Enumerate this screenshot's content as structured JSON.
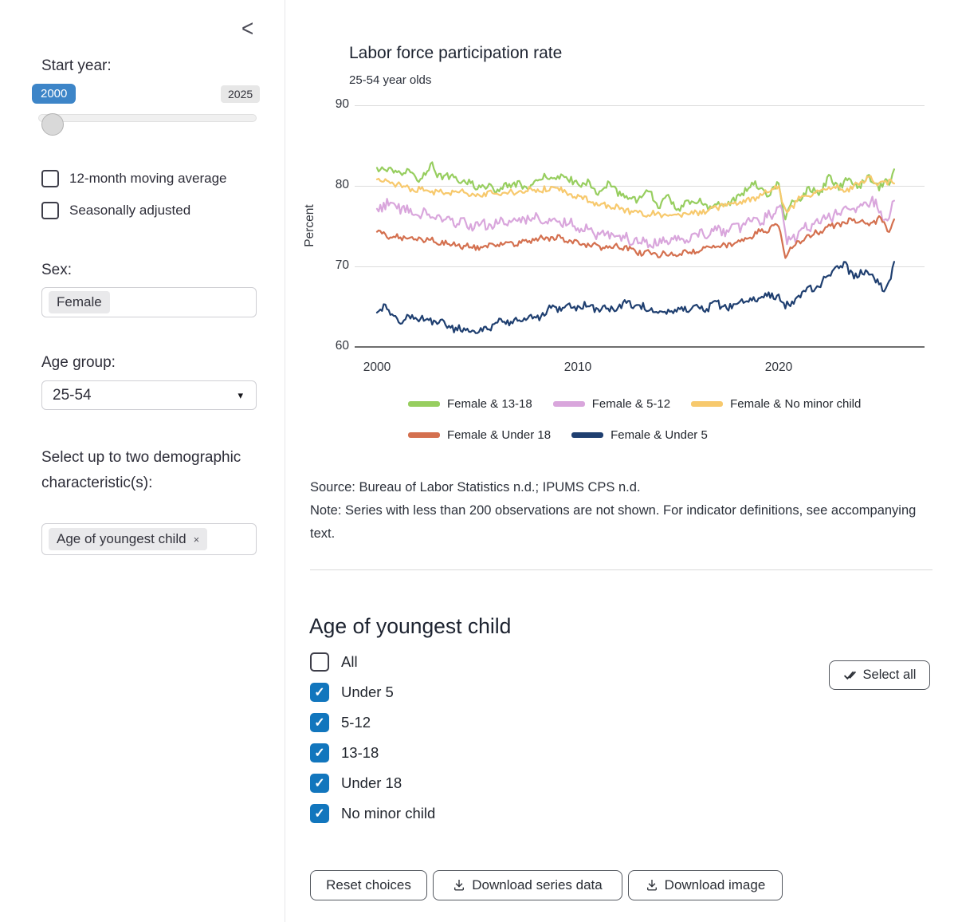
{
  "icons": {
    "collapse": "<",
    "caret": "▾",
    "check": "✓",
    "tag_remove": "×"
  },
  "sidebar": {
    "start_year": {
      "label": "Start year:",
      "min_value": "2000",
      "max_value": "2025"
    },
    "checkboxes": [
      {
        "label": "12-month moving average",
        "checked": false
      },
      {
        "label": "Seasonally adjusted",
        "checked": false
      }
    ],
    "sex": {
      "label": "Sex:",
      "selected_tag": "Female"
    },
    "age_group": {
      "label": "Age group:",
      "value": "25-54"
    },
    "demographics": {
      "label": "Select up to two demographic characteristic(s):",
      "selected_tag": "Age of youngest child"
    }
  },
  "chart_data": {
    "type": "line",
    "title": "Labor force participation rate",
    "subtitle": "25-54 year olds",
    "ylabel": "Percent",
    "ylim": [
      60,
      90
    ],
    "yticks": [
      60,
      70,
      80,
      90
    ],
    "xticks": [
      2000,
      2010,
      2020
    ],
    "x_range": [
      2000,
      2025.8
    ],
    "x_unit": "monthly",
    "grid": "horizontal",
    "legend_position": "bottom-left",
    "legend_rows": [
      3,
      2
    ],
    "series": [
      {
        "name": "Female & 13-18",
        "color": "#97ce5f",
        "noise": 0.5,
        "points": [
          [
            2000,
            81.7
          ],
          [
            2000.5,
            82.3
          ],
          [
            2001,
            81.2
          ],
          [
            2001.5,
            82.0
          ],
          [
            2002,
            80.6
          ],
          [
            2002.7,
            82.6
          ],
          [
            2003,
            81.5
          ],
          [
            2004,
            80.8
          ],
          [
            2005,
            80.0
          ],
          [
            2006,
            79.6
          ],
          [
            2007,
            80.3
          ],
          [
            2007.5,
            79.5
          ],
          [
            2008,
            80.6
          ],
          [
            2008.6,
            81.4
          ],
          [
            2009,
            80.8
          ],
          [
            2009.5,
            81.2
          ],
          [
            2010,
            79.9
          ],
          [
            2010.5,
            80.8
          ],
          [
            2011,
            78.7
          ],
          [
            2011.5,
            80.2
          ],
          [
            2012,
            79.1
          ],
          [
            2013,
            78.3
          ],
          [
            2013.5,
            79.4
          ],
          [
            2014,
            77.5
          ],
          [
            2014.5,
            78.5
          ],
          [
            2015,
            77.2
          ],
          [
            2016,
            78.3
          ],
          [
            2016.5,
            77.4
          ],
          [
            2017,
            77.7
          ],
          [
            2018,
            78.4
          ],
          [
            2018.7,
            80.6
          ],
          [
            2019,
            79.8
          ],
          [
            2019.5,
            78.9
          ],
          [
            2020,
            80.3
          ],
          [
            2020.3,
            75.8
          ],
          [
            2020.7,
            78.0
          ],
          [
            2021,
            78.4
          ],
          [
            2021.5,
            79.6
          ],
          [
            2022,
            79.0
          ],
          [
            2022.5,
            80.9
          ],
          [
            2023,
            79.9
          ],
          [
            2023.5,
            80.8
          ],
          [
            2024,
            79.9
          ],
          [
            2024.5,
            80.9
          ],
          [
            2025,
            79.8
          ],
          [
            2025.5,
            80.6
          ],
          [
            2025.8,
            82.2
          ]
        ]
      },
      {
        "name": "Female & 5-12",
        "color": "#d9a6dc",
        "noise": 0.75,
        "points": [
          [
            2000,
            77.1
          ],
          [
            2000.5,
            77.8
          ],
          [
            2001,
            77.5
          ],
          [
            2002,
            76.6
          ],
          [
            2003,
            76.2
          ],
          [
            2004,
            75.4
          ],
          [
            2005,
            75.0
          ],
          [
            2006,
            75.5
          ],
          [
            2007,
            75.7
          ],
          [
            2008,
            76.1
          ],
          [
            2009,
            75.7
          ],
          [
            2010,
            75.1
          ],
          [
            2011,
            74.0
          ],
          [
            2012,
            73.6
          ],
          [
            2013,
            73.1
          ],
          [
            2014,
            72.9
          ],
          [
            2015,
            73.4
          ],
          [
            2016,
            74.0
          ],
          [
            2017,
            74.4
          ],
          [
            2018,
            74.9
          ],
          [
            2019,
            75.6
          ],
          [
            2019.8,
            76.5
          ],
          [
            2020.1,
            78.1
          ],
          [
            2020.4,
            72.9
          ],
          [
            2020.7,
            73.4
          ],
          [
            2021,
            74.1
          ],
          [
            2022,
            75.6
          ],
          [
            2023,
            76.7
          ],
          [
            2024,
            77.1
          ],
          [
            2024.7,
            78.1
          ],
          [
            2025.1,
            76.8
          ],
          [
            2025.4,
            75.2
          ],
          [
            2025.6,
            77.6
          ],
          [
            2025.8,
            77.4
          ]
        ]
      },
      {
        "name": "Female & No minor child",
        "color": "#f7c96d",
        "noise": 0.45,
        "points": [
          [
            2000,
            81.1
          ],
          [
            2000.4,
            80.4
          ],
          [
            2001,
            80.2
          ],
          [
            2002,
            79.5
          ],
          [
            2003,
            79.1
          ],
          [
            2004,
            79.4
          ],
          [
            2005,
            78.9
          ],
          [
            2006,
            79.0
          ],
          [
            2007,
            79.2
          ],
          [
            2008,
            79.5
          ],
          [
            2009,
            79.6
          ],
          [
            2010,
            78.7
          ],
          [
            2011,
            77.7
          ],
          [
            2012,
            77.2
          ],
          [
            2013,
            76.7
          ],
          [
            2014,
            76.4
          ],
          [
            2015,
            76.6
          ],
          [
            2016,
            76.6
          ],
          [
            2017,
            77.4
          ],
          [
            2018,
            77.9
          ],
          [
            2019,
            78.7
          ],
          [
            2020,
            79.9
          ],
          [
            2020.3,
            76.8
          ],
          [
            2020.7,
            77.4
          ],
          [
            2021,
            78.2
          ],
          [
            2022,
            79.3
          ],
          [
            2023,
            80.0
          ],
          [
            2023.5,
            79.5
          ],
          [
            2024,
            80.4
          ],
          [
            2024.5,
            81.0
          ],
          [
            2025,
            80.3
          ],
          [
            2025.8,
            80.5
          ]
        ]
      },
      {
        "name": "Female & Under 18",
        "color": "#d4704f",
        "noise": 0.4,
        "points": [
          [
            2000,
            74.2
          ],
          [
            2001,
            73.6
          ],
          [
            2002,
            73.4
          ],
          [
            2003,
            73.1
          ],
          [
            2004,
            72.6
          ],
          [
            2005,
            72.4
          ],
          [
            2006,
            72.6
          ],
          [
            2007,
            72.9
          ],
          [
            2008,
            73.4
          ],
          [
            2009,
            73.5
          ],
          [
            2010,
            73.0
          ],
          [
            2011,
            72.4
          ],
          [
            2012,
            72.5
          ],
          [
            2013,
            71.8
          ],
          [
            2014,
            71.5
          ],
          [
            2015,
            71.6
          ],
          [
            2016,
            72.0
          ],
          [
            2017,
            72.5
          ],
          [
            2018,
            73.0
          ],
          [
            2019,
            74.2
          ],
          [
            2020,
            75.1
          ],
          [
            2020.3,
            71.4
          ],
          [
            2020.7,
            72.3
          ],
          [
            2021,
            73.0
          ],
          [
            2022,
            74.4
          ],
          [
            2023,
            75.3
          ],
          [
            2024,
            75.8
          ],
          [
            2024.5,
            75.2
          ],
          [
            2025,
            75.9
          ],
          [
            2025.5,
            74.3
          ],
          [
            2025.8,
            76.6
          ]
        ]
      },
      {
        "name": "Female & Under 5",
        "color": "#1f3f70",
        "noise": 0.55,
        "points": [
          [
            2000,
            63.9
          ],
          [
            2000.3,
            65.2
          ],
          [
            2001,
            63.3
          ],
          [
            2002,
            63.6
          ],
          [
            2003,
            63.2
          ],
          [
            2003.5,
            62.6
          ],
          [
            2004,
            62.3
          ],
          [
            2004.7,
            61.7
          ],
          [
            2005,
            62.0
          ],
          [
            2006,
            62.9
          ],
          [
            2007,
            63.5
          ],
          [
            2008,
            63.6
          ],
          [
            2008.7,
            65.0
          ],
          [
            2009,
            64.6
          ],
          [
            2010,
            65.0
          ],
          [
            2010.5,
            65.3
          ],
          [
            2011,
            64.5
          ],
          [
            2012,
            64.9
          ],
          [
            2012.5,
            65.4
          ],
          [
            2013,
            65.1
          ],
          [
            2014,
            64.4
          ],
          [
            2015,
            64.3
          ],
          [
            2015.5,
            64.9
          ],
          [
            2016,
            64.6
          ],
          [
            2017,
            65.3
          ],
          [
            2017.5,
            64.8
          ],
          [
            2018,
            65.6
          ],
          [
            2019,
            66.2
          ],
          [
            2020,
            66.4
          ],
          [
            2020.3,
            64.9
          ],
          [
            2020.7,
            65.6
          ],
          [
            2021,
            66.2
          ],
          [
            2021.5,
            67.3
          ],
          [
            2022,
            67.4
          ],
          [
            2022.8,
            69.9
          ],
          [
            2023.3,
            70.2
          ],
          [
            2023.8,
            68.8
          ],
          [
            2024.3,
            69.3
          ],
          [
            2024.8,
            68.4
          ],
          [
            2025.3,
            66.9
          ],
          [
            2025.6,
            69.0
          ],
          [
            2025.8,
            70.4
          ]
        ]
      }
    ]
  },
  "source_note": {
    "source": "Source: Bureau of Labor Statistics n.d.; IPUMS CPS n.d.",
    "note": "Note: Series with less than 200 observations are not shown. For indicator definitions, see accompanying text."
  },
  "options_panel": {
    "title": "Age of youngest child",
    "select_all_label": "Select all",
    "items": [
      {
        "label": "All",
        "checked": false
      },
      {
        "label": "Under 5",
        "checked": true
      },
      {
        "label": "5-12",
        "checked": true
      },
      {
        "label": "13-18",
        "checked": true
      },
      {
        "label": "Under 18",
        "checked": true
      },
      {
        "label": "No minor child",
        "checked": true
      }
    ]
  },
  "footer_buttons": {
    "reset": "Reset choices",
    "download_data": "Download series data",
    "download_image": "Download image"
  }
}
